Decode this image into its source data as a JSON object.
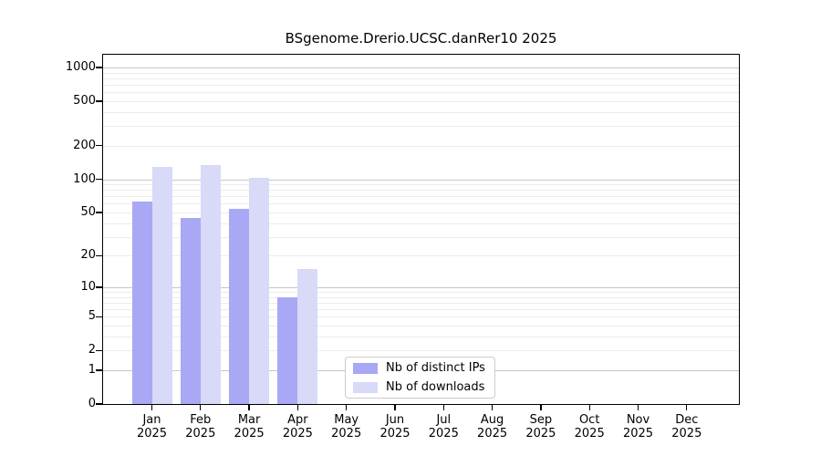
{
  "title": "BSgenome.Drerio.UCSC.danRer10 2025",
  "chart_data": {
    "type": "bar",
    "title": "BSgenome.Drerio.UCSC.danRer10 2025",
    "categories": [
      "Jan",
      "Feb",
      "Mar",
      "Apr",
      "May",
      "Jun",
      "Jul",
      "Aug",
      "Sep",
      "Oct",
      "Nov",
      "Dec"
    ],
    "year": "2025",
    "series": [
      {
        "name": "Nb of distinct IPs",
        "color": "#a8a8f4",
        "values": [
          63,
          45,
          54,
          8,
          null,
          null,
          null,
          null,
          null,
          null,
          null,
          null
        ]
      },
      {
        "name": "Nb of downloads",
        "color": "#d9d9f8",
        "values": [
          130,
          135,
          103,
          15,
          null,
          null,
          null,
          null,
          null,
          null,
          null,
          null
        ]
      }
    ],
    "y_axis": {
      "scale": "log1p",
      "ticks": [
        0,
        1,
        2,
        5,
        10,
        20,
        50,
        100,
        200,
        500,
        1000
      ],
      "range": [
        0,
        1300
      ]
    },
    "x_axis": {
      "label_line2": "2025"
    },
    "gridlines": {
      "major": [
        1,
        10,
        100,
        1000
      ],
      "minor": [
        2,
        3,
        4,
        5,
        6,
        7,
        8,
        9,
        20,
        30,
        40,
        50,
        60,
        70,
        80,
        90,
        200,
        300,
        400,
        500,
        600,
        700,
        800,
        900
      ]
    },
    "legend": {
      "position": "bottom-center"
    }
  },
  "colors": {
    "bar_ips": "#a8a8f4",
    "bar_downloads": "#d9d9f8",
    "grid_major": "#c6c6c6",
    "grid_minor": "#ececec",
    "axis": "#000000",
    "legend_border": "#cccccc",
    "background": "#ffffff"
  }
}
